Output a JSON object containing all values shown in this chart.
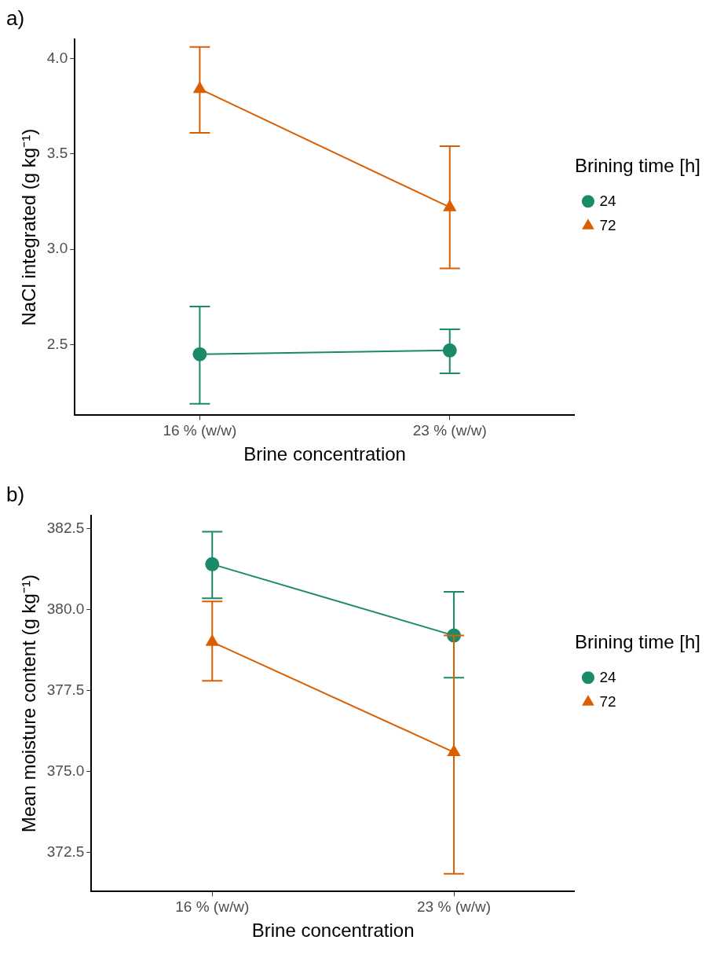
{
  "chart_data": [
    {
      "type": "line",
      "annotations": [
        "a)"
      ],
      "xlabel": "Brine concentration",
      "ylabel": "NaCl integrated (g kg⁻¹)",
      "legend_title": "Brining time [h]",
      "categories": [
        "16 % (w/w)",
        "23 % (w/w)"
      ],
      "series": [
        {
          "name": "24",
          "color": "#1b8a6b",
          "marker": "circle",
          "values": [
            2.45,
            2.47
          ],
          "errors": [
            [
              2.19,
              2.7
            ],
            [
              2.35,
              2.58
            ]
          ]
        },
        {
          "name": "72",
          "color": "#d95f02",
          "marker": "triangle",
          "values": [
            3.84,
            3.22
          ],
          "errors": [
            [
              3.61,
              4.06
            ],
            [
              2.9,
              3.54
            ]
          ]
        }
      ],
      "ylim": [
        2.13,
        4.1
      ],
      "yticks": [
        {
          "value": 2.5,
          "label": "2.5"
        },
        {
          "value": 3,
          "label": "3.0"
        },
        {
          "value": 3.5,
          "label": "3.5"
        },
        {
          "value": 4,
          "label": "4.0"
        }
      ],
      "grid": false,
      "legend": "right",
      "line_style": "solid"
    },
    {
      "type": "line",
      "annotations": [
        "b)"
      ],
      "xlabel": "Brine concentration",
      "ylabel": "Mean moisture content (g kg⁻¹)",
      "legend_title": "Brining time [h]",
      "categories": [
        "16 % (w/w)",
        "23 % (w/w)"
      ],
      "series": [
        {
          "name": "24",
          "color": "#1b8a6b",
          "marker": "circle",
          "values": [
            381.4,
            379.2
          ],
          "errors": [
            [
              380.35,
              382.4
            ],
            [
              377.9,
              380.55
            ]
          ]
        },
        {
          "name": "72",
          "color": "#d95f02",
          "marker": "triangle",
          "values": [
            379.0,
            375.6
          ],
          "errors": [
            [
              377.8,
              380.25
            ],
            [
              371.85,
              379.2
            ]
          ]
        }
      ],
      "ylim": [
        371.3,
        382.9
      ],
      "yticks": [
        {
          "value": 372.5,
          "label": "372.5"
        },
        {
          "value": 375,
          "label": "375.0"
        },
        {
          "value": 377.5,
          "label": "377.5"
        },
        {
          "value": 380,
          "label": "380.0"
        },
        {
          "value": 382.5,
          "label": "382.5"
        }
      ],
      "grid": false,
      "legend": "right",
      "line_style": "solid"
    }
  ]
}
